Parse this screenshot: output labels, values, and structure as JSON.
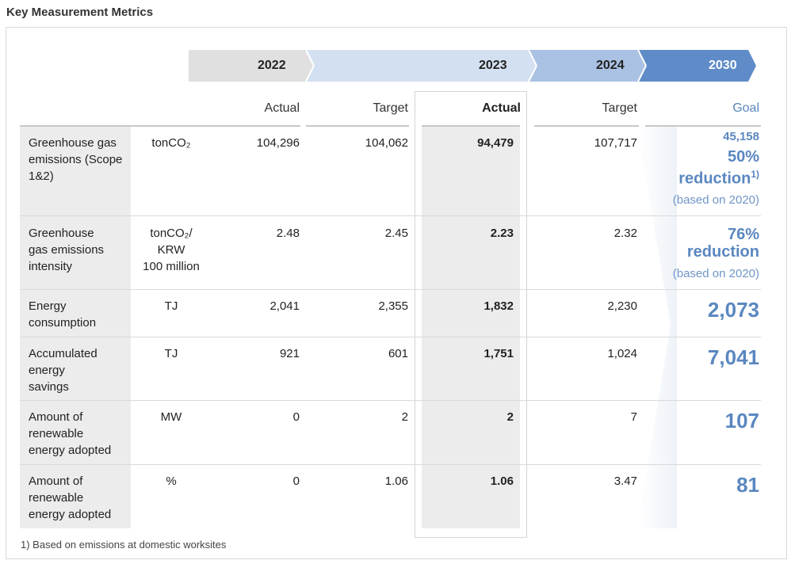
{
  "page_title": "Key Measurement Metrics",
  "years": {
    "y2022": "2022",
    "y2023": "2023",
    "y2024": "2024",
    "y2030": "2030"
  },
  "columns": {
    "actual_2022": "Actual",
    "target_2023": "Target",
    "actual_2023": "Actual",
    "target_2024": "Target",
    "goal_2030": "Goal"
  },
  "rows": [
    {
      "label_lines": [
        "Greenhouse gas",
        "emissions (Scope",
        "1&2)"
      ],
      "unit_lines": [
        "tonCO₂"
      ],
      "actual_2022": "104,296",
      "target_2023": "104,062",
      "actual_2023": "94,479",
      "target_2024": "107,717",
      "goal_top": "45,158",
      "goal_main_1": "50%",
      "goal_main_2": "reduction",
      "goal_sup": "1)",
      "goal_note": "(based on 2020)"
    },
    {
      "label_lines": [
        "Greenhouse",
        "gas emissions",
        "intensity"
      ],
      "unit_lines": [
        "tonCO₂/",
        "KRW",
        "100 million"
      ],
      "actual_2022": "2.48",
      "target_2023": "2.45",
      "actual_2023": "2.23",
      "target_2024": "2.32",
      "goal_main_1": "76%",
      "goal_main_2": "reduction",
      "goal_note": "(based on 2020)"
    },
    {
      "label_lines": [
        "Energy",
        "consumption"
      ],
      "unit_lines": [
        "TJ"
      ],
      "actual_2022": "2,041",
      "target_2023": "2,355",
      "actual_2023": "1,832",
      "target_2024": "2,230",
      "goal_big": "2,073"
    },
    {
      "label_lines": [
        "Accumulated",
        "energy",
        "savings"
      ],
      "unit_lines": [
        "TJ"
      ],
      "actual_2022": "921",
      "target_2023": "601",
      "actual_2023": "1,751",
      "target_2024": "1,024",
      "goal_big": "7,041"
    },
    {
      "label_lines": [
        "Amount of",
        "renewable",
        "energy adopted"
      ],
      "unit_lines": [
        "MW"
      ],
      "actual_2022": "0",
      "target_2023": "2",
      "actual_2023": "2",
      "target_2024": "7",
      "goal_big": "107"
    },
    {
      "label_lines": [
        "Amount of",
        "renewable",
        "energy adopted"
      ],
      "unit_lines": [
        "%"
      ],
      "actual_2022": "0",
      "target_2023": "1.06",
      "actual_2023": "1.06",
      "target_2024": "3.47",
      "goal_big": "81"
    }
  ],
  "footnote": "1) Based on emissions at domestic worksites",
  "colors": {
    "banner_2022": "#e0e0e0",
    "banner_2023": "#d3e0f1",
    "banner_2024": "#a9c1e3",
    "banner_2030": "#5f8cc8",
    "goal_text": "#5a87c0"
  }
}
